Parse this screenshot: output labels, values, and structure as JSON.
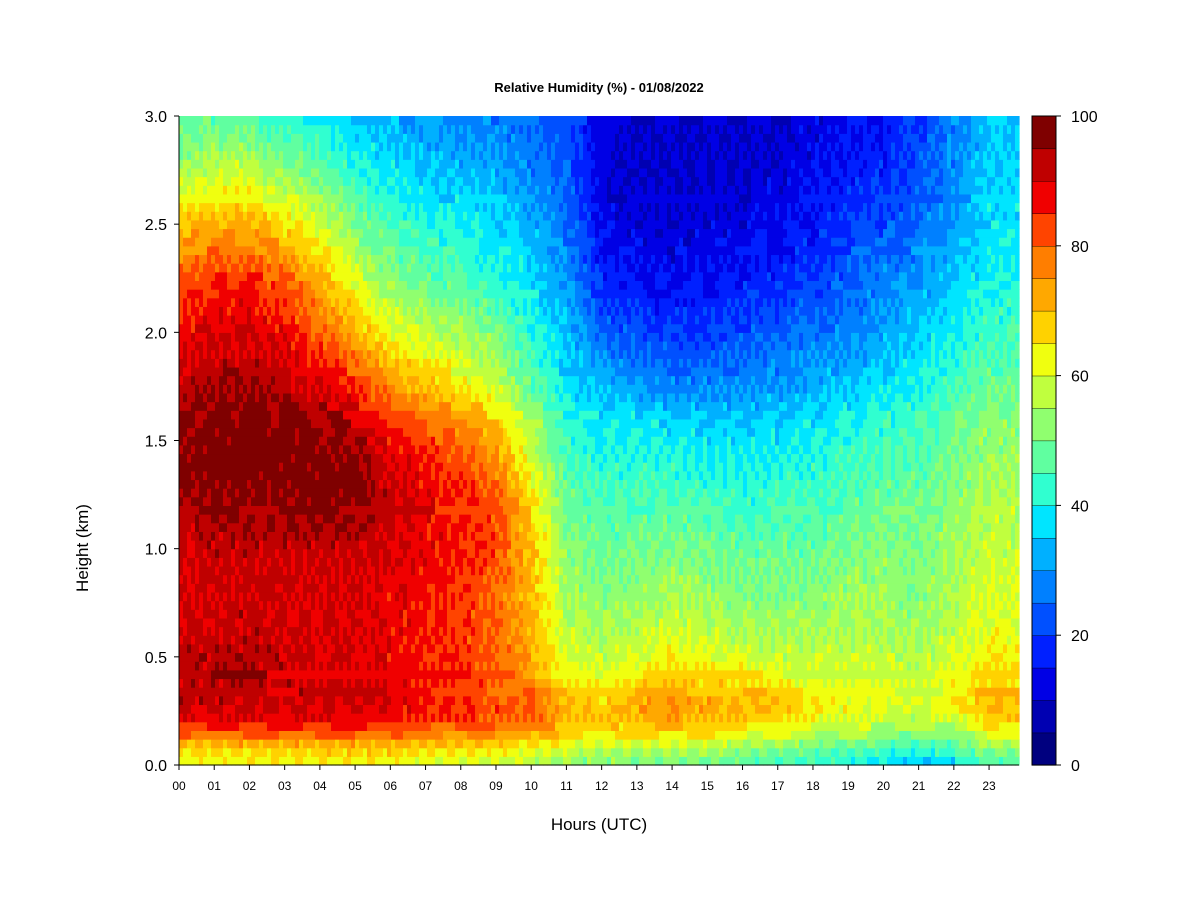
{
  "chart_data": {
    "type": "heatmap",
    "title": "Relative Humidity (%) - 01/08/2022",
    "xlabel": "Hours (UTC)",
    "ylabel": "Height (km)",
    "xlim": [
      0,
      23.85
    ],
    "ylim": [
      0,
      3.0
    ],
    "x_ticks": [
      "00",
      "01",
      "02",
      "03",
      "04",
      "05",
      "06",
      "07",
      "08",
      "09",
      "10",
      "11",
      "12",
      "13",
      "14",
      "15",
      "16",
      "17",
      "18",
      "19",
      "20",
      "21",
      "22",
      "23"
    ],
    "y_ticks": [
      "0.0",
      "0.5",
      "1.0",
      "1.5",
      "2.0",
      "2.5",
      "3.0"
    ],
    "colorbar": {
      "ticks": [
        "0",
        "20",
        "40",
        "60",
        "80",
        "100"
      ],
      "min": 0,
      "max": 100,
      "levels": [
        "#00007f",
        "#0000b2",
        "#0000e5",
        "#0020ff",
        "#0050ff",
        "#0080ff",
        "#00b0ff",
        "#00e5ff",
        "#30ffd0",
        "#60ffa0",
        "#90ff6f",
        "#c0ff3e",
        "#f0ff0f",
        "#ffd200",
        "#ffa800",
        "#ff7e00",
        "#ff4400",
        "#f00000",
        "#bf0000",
        "#7f0000"
      ]
    },
    "grid": false,
    "hours": [
      0,
      1,
      2,
      3,
      4,
      5,
      6,
      7,
      8,
      9,
      10,
      11,
      12,
      13,
      14,
      15,
      16,
      17,
      18,
      19,
      20,
      21,
      22,
      23
    ],
    "heights_km": [
      0.0,
      0.05,
      0.1,
      0.15,
      0.2,
      0.25,
      0.3,
      0.35,
      0.4,
      0.5,
      0.6,
      0.75,
      1.0,
      1.25,
      1.4,
      1.6,
      1.75,
      2.0,
      2.25,
      2.5,
      2.75,
      3.0
    ],
    "values": [
      [
        62,
        65,
        70,
        80,
        87,
        90,
        92,
        92,
        92,
        92,
        91,
        90,
        90,
        95,
        98,
        96,
        93,
        88,
        80,
        70,
        55,
        45
      ],
      [
        62,
        65,
        72,
        82,
        88,
        90,
        92,
        93,
        93,
        93,
        92,
        91,
        92,
        96,
        99,
        97,
        95,
        90,
        85,
        72,
        58,
        47
      ],
      [
        62,
        65,
        72,
        82,
        88,
        91,
        92,
        93,
        93,
        93,
        92,
        92,
        93,
        97,
        99,
        98,
        95,
        90,
        85,
        72,
        58,
        45
      ],
      [
        62,
        66,
        72,
        82,
        88,
        90,
        92,
        92,
        92,
        92,
        91,
        90,
        92,
        97,
        98,
        97,
        93,
        88,
        80,
        66,
        52,
        42
      ],
      [
        62,
        66,
        72,
        82,
        88,
        90,
        91,
        91,
        91,
        90,
        90,
        90,
        92,
        98,
        98,
        96,
        90,
        80,
        72,
        60,
        48,
        40
      ],
      [
        62,
        66,
        72,
        82,
        88,
        90,
        91,
        91,
        91,
        90,
        90,
        90,
        92,
        98,
        97,
        92,
        85,
        72,
        60,
        50,
        42,
        35
      ],
      [
        62,
        66,
        72,
        80,
        86,
        88,
        89,
        89,
        89,
        88,
        88,
        88,
        90,
        92,
        90,
        85,
        75,
        62,
        52,
        45,
        38,
        32
      ],
      [
        60,
        64,
        70,
        78,
        84,
        86,
        86,
        86,
        86,
        86,
        86,
        86,
        88,
        88,
        86,
        80,
        70,
        58,
        48,
        42,
        35,
        30
      ],
      [
        60,
        64,
        70,
        78,
        82,
        84,
        84,
        84,
        84,
        84,
        84,
        84,
        86,
        86,
        82,
        75,
        65,
        55,
        45,
        40,
        33,
        28
      ],
      [
        58,
        62,
        68,
        76,
        80,
        82,
        82,
        82,
        80,
        80,
        80,
        80,
        82,
        82,
        76,
        68,
        58,
        50,
        42,
        37,
        32,
        27
      ],
      [
        56,
        60,
        66,
        74,
        78,
        80,
        80,
        78,
        75,
        72,
        72,
        70,
        70,
        66,
        60,
        55,
        48,
        42,
        37,
        33,
        28,
        25
      ],
      [
        52,
        56,
        62,
        68,
        72,
        72,
        70,
        67,
        64,
        60,
        58,
        55,
        52,
        48,
        45,
        42,
        38,
        34,
        30,
        26,
        24,
        22
      ],
      [
        50,
        54,
        60,
        66,
        68,
        68,
        66,
        64,
        62,
        58,
        55,
        52,
        48,
        45,
        42,
        38,
        33,
        25,
        18,
        14,
        12,
        12
      ],
      [
        50,
        54,
        60,
        66,
        70,
        72,
        72,
        70,
        66,
        60,
        57,
        54,
        50,
        45,
        42,
        38,
        30,
        22,
        15,
        12,
        10,
        10
      ],
      [
        50,
        54,
        60,
        68,
        72,
        75,
        74,
        72,
        68,
        64,
        60,
        56,
        50,
        45,
        42,
        36,
        28,
        20,
        14,
        11,
        10,
        10
      ],
      [
        48,
        52,
        58,
        66,
        70,
        72,
        72,
        70,
        66,
        62,
        58,
        54,
        50,
        44,
        40,
        35,
        28,
        20,
        15,
        12,
        10,
        10
      ],
      [
        46,
        50,
        56,
        64,
        68,
        70,
        70,
        68,
        64,
        60,
        56,
        52,
        48,
        42,
        40,
        35,
        28,
        22,
        16,
        12,
        10,
        10
      ],
      [
        45,
        48,
        54,
        62,
        66,
        70,
        70,
        66,
        62,
        58,
        55,
        52,
        48,
        44,
        40,
        36,
        30,
        24,
        18,
        14,
        12,
        10
      ],
      [
        42,
        46,
        52,
        58,
        62,
        64,
        64,
        62,
        60,
        58,
        56,
        52,
        48,
        44,
        42,
        38,
        32,
        26,
        20,
        16,
        14,
        12
      ],
      [
        40,
        44,
        50,
        56,
        60,
        62,
        62,
        62,
        60,
        58,
        56,
        54,
        50,
        46,
        44,
        40,
        35,
        28,
        24,
        20,
        16,
        14
      ],
      [
        38,
        40,
        48,
        55,
        58,
        60,
        62,
        62,
        60,
        58,
        56,
        54,
        52,
        48,
        46,
        42,
        37,
        32,
        28,
        22,
        18,
        16
      ],
      [
        35,
        40,
        46,
        52,
        56,
        58,
        60,
        60,
        58,
        56,
        54,
        52,
        50,
        48,
        46,
        44,
        40,
        36,
        30,
        26,
        22,
        20
      ],
      [
        35,
        42,
        48,
        54,
        58,
        62,
        64,
        64,
        62,
        60,
        58,
        56,
        54,
        52,
        50,
        48,
        44,
        40,
        35,
        30,
        28,
        28
      ],
      [
        45,
        50,
        56,
        62,
        66,
        70,
        70,
        68,
        66,
        64,
        62,
        60,
        58,
        56,
        54,
        52,
        48,
        44,
        40,
        38,
        36,
        35
      ]
    ]
  }
}
